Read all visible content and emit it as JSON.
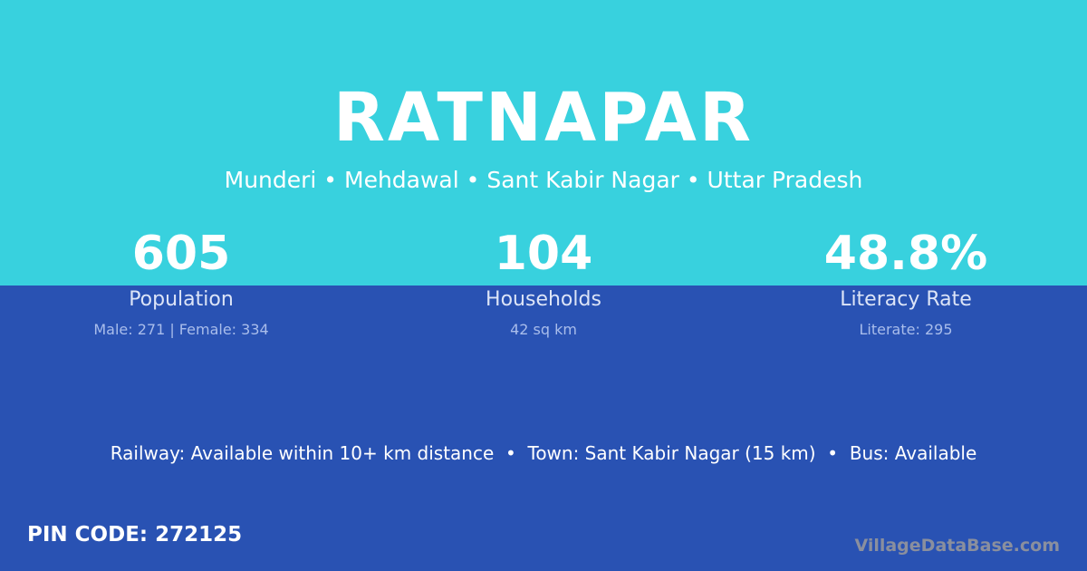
{
  "colors": {
    "top_background": "#38D1DE",
    "bottom_background": "#2952B3"
  },
  "village": {
    "name": "RATNAPAR",
    "location": "Munderi • Mehdawal • Sant Kabir Nagar • Uttar Pradesh"
  },
  "stats": [
    {
      "value": "605",
      "label": "Population",
      "detail": "Male: 271 | Female: 334"
    },
    {
      "value": "104",
      "label": "Households",
      "detail": "42 sq km"
    },
    {
      "value": "48.8%",
      "label": "Literacy Rate",
      "detail": "Literate: 295"
    }
  ],
  "connectivity": "Railway: Available within 10+ km distance  •  Town: Sant Kabir Nagar (15 km)  •  Bus: Available",
  "pin_code": "PIN CODE: 272125",
  "brand": "VillageDataBase.com"
}
